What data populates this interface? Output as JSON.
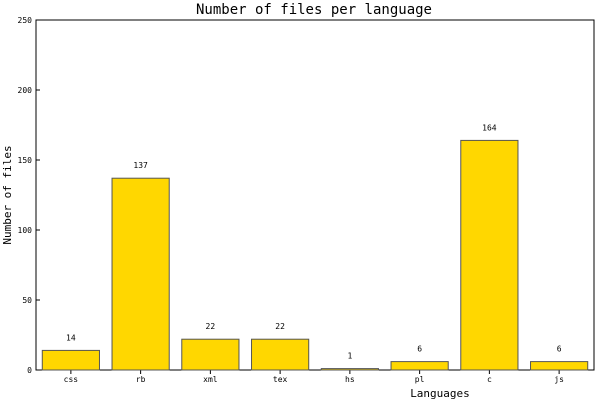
{
  "chart_data": {
    "type": "bar",
    "title": "Number of files per language",
    "xlabel": "Languages",
    "ylabel": "Number of files",
    "categories": [
      "css",
      "rb",
      "xml",
      "tex",
      "hs",
      "pl",
      "c",
      "js"
    ],
    "values": [
      14,
      137,
      22,
      22,
      1,
      6,
      164,
      6
    ],
    "data_labels": [
      "14",
      "137",
      "22",
      "22",
      "1",
      "6",
      "164",
      "6"
    ],
    "ylim": [
      0,
      250
    ],
    "yticks": [
      0,
      50,
      100,
      150,
      200,
      250
    ],
    "grid": false,
    "legend": "none",
    "colors": {
      "bar_fill": "#FFD700",
      "bar_stroke": "#555555",
      "axis": "#000000",
      "background": "#FFFFFF"
    }
  }
}
